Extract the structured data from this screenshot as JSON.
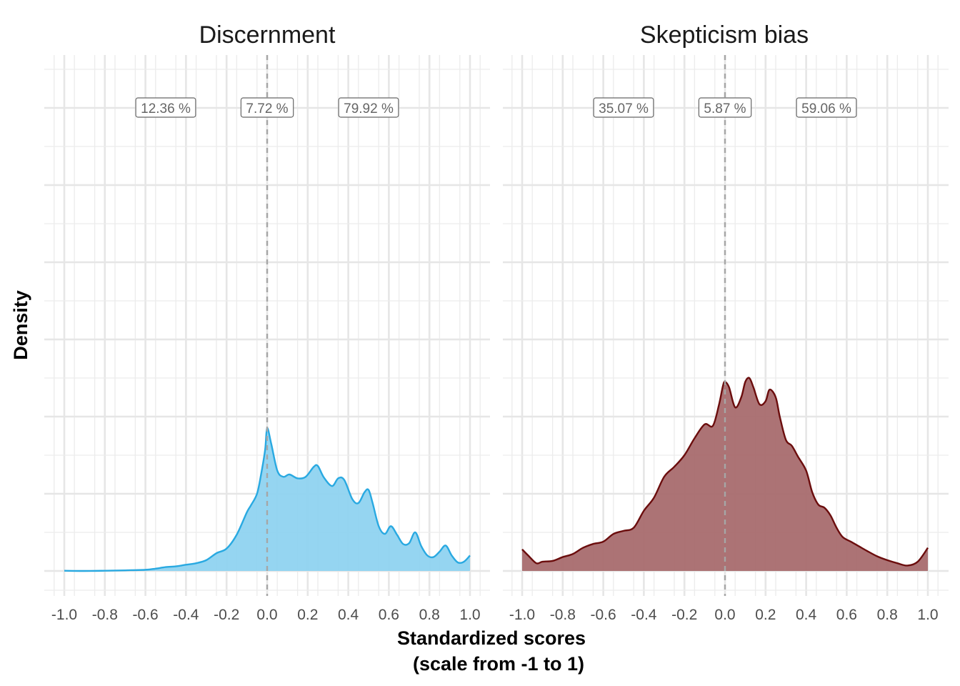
{
  "chart_data": {
    "type": "area",
    "xlabel_lines": [
      "Standardized scores",
      "(scale from -1 to 1)"
    ],
    "ylabel": "Density",
    "xlim": [
      -1.0,
      1.0
    ],
    "x_ticks": [
      "-1.0",
      "-0.8",
      "-0.6",
      "-0.4",
      "-0.2",
      "0.0",
      "0.2",
      "0.4",
      "0.6",
      "0.8",
      "1.0"
    ],
    "y_tick_labels_shown": false,
    "grid": true,
    "reference_line_x": 0.0,
    "panels": [
      {
        "title": "Discernment",
        "color": "#29a9e1",
        "fill": "#8fd3f0",
        "percent_labels": [
          {
            "x": -0.5,
            "text": "12.36 %"
          },
          {
            "x": 0.0,
            "text": "7.72 %"
          },
          {
            "x": 0.5,
            "text": "79.92 %"
          }
        ],
        "density": {
          "x": [
            -1.0,
            -0.9,
            -0.8,
            -0.7,
            -0.6,
            -0.55,
            -0.5,
            -0.45,
            -0.4,
            -0.35,
            -0.3,
            -0.25,
            -0.2,
            -0.15,
            -0.1,
            -0.08,
            -0.05,
            -0.03,
            -0.01,
            0.0,
            0.02,
            0.05,
            0.08,
            0.11,
            0.15,
            0.19,
            0.23,
            0.25,
            0.28,
            0.32,
            0.35,
            0.38,
            0.42,
            0.45,
            0.48,
            0.5,
            0.52,
            0.55,
            0.58,
            0.61,
            0.64,
            0.67,
            0.7,
            0.73,
            0.76,
            0.79,
            0.82,
            0.85,
            0.88,
            0.91,
            0.94,
            0.97,
            1.0
          ],
          "y": [
            0.003,
            0.0,
            0.003,
            0.008,
            0.015,
            0.03,
            0.05,
            0.06,
            0.08,
            0.1,
            0.14,
            0.23,
            0.29,
            0.47,
            0.76,
            0.85,
            1.0,
            1.25,
            1.57,
            1.85,
            1.65,
            1.3,
            1.22,
            1.25,
            1.2,
            1.22,
            1.35,
            1.36,
            1.21,
            1.1,
            1.2,
            1.18,
            0.93,
            0.88,
            1.02,
            1.05,
            0.88,
            0.58,
            0.48,
            0.58,
            0.47,
            0.35,
            0.36,
            0.5,
            0.32,
            0.2,
            0.18,
            0.25,
            0.33,
            0.2,
            0.11,
            0.12,
            0.2
          ]
        }
      },
      {
        "title": "Skepticism bias",
        "color": "#6b0d0d",
        "fill": "#a86c6e",
        "percent_labels": [
          {
            "x": -0.5,
            "text": "35.07 %"
          },
          {
            "x": 0.0,
            "text": "5.87 %"
          },
          {
            "x": 0.5,
            "text": "59.06 %"
          }
        ],
        "density": {
          "x": [
            -1.0,
            -0.97,
            -0.93,
            -0.9,
            -0.85,
            -0.8,
            -0.75,
            -0.7,
            -0.65,
            -0.6,
            -0.55,
            -0.5,
            -0.45,
            -0.4,
            -0.35,
            -0.3,
            -0.25,
            -0.2,
            -0.15,
            -0.1,
            -0.06,
            -0.03,
            -0.01,
            0.0,
            0.02,
            0.05,
            0.08,
            0.1,
            0.12,
            0.14,
            0.17,
            0.2,
            0.22,
            0.25,
            0.27,
            0.3,
            0.33,
            0.36,
            0.4,
            0.43,
            0.46,
            0.49,
            0.52,
            0.55,
            0.58,
            0.62,
            0.66,
            0.7,
            0.75,
            0.8,
            0.85,
            0.9,
            0.95,
            1.0
          ],
          "y": [
            0.28,
            0.2,
            0.1,
            0.12,
            0.13,
            0.18,
            0.22,
            0.3,
            0.35,
            0.38,
            0.48,
            0.52,
            0.56,
            0.78,
            0.95,
            1.22,
            1.35,
            1.5,
            1.72,
            1.9,
            1.88,
            2.15,
            2.4,
            2.45,
            2.38,
            2.12,
            2.25,
            2.45,
            2.5,
            2.38,
            2.16,
            2.2,
            2.35,
            2.25,
            2.0,
            1.7,
            1.62,
            1.48,
            1.3,
            1.02,
            0.86,
            0.82,
            0.72,
            0.56,
            0.44,
            0.38,
            0.32,
            0.26,
            0.19,
            0.14,
            0.1,
            0.07,
            0.12,
            0.3
          ]
        }
      }
    ]
  }
}
